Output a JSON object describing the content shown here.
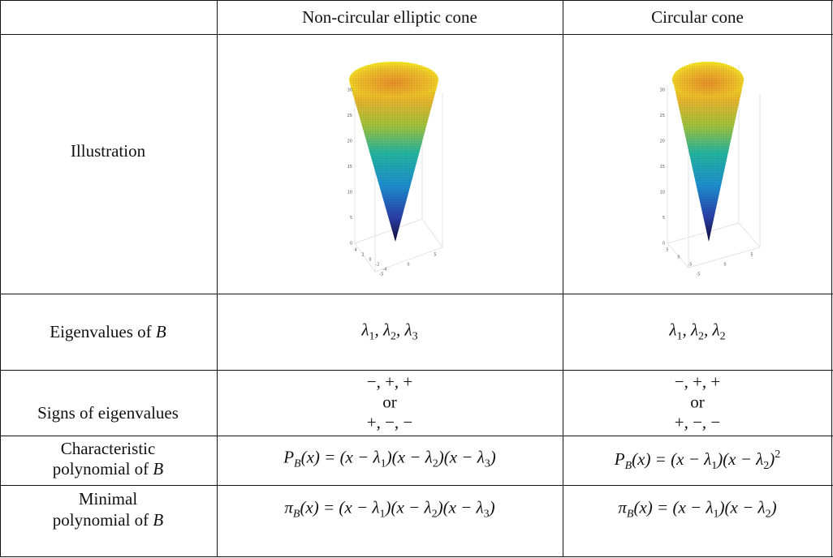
{
  "header": {
    "left": "Non-circular elliptic cone",
    "right": "Circular cone"
  },
  "illustration": {
    "label": "Illustration",
    "left": {
      "zticks": [
        "30",
        "25",
        "20",
        "15",
        "10",
        "5",
        "0"
      ],
      "xticks": [
        "4",
        "2",
        "0",
        "-2",
        "-4"
      ],
      "yticks": [
        "-5",
        "0",
        "5"
      ]
    },
    "right": {
      "zticks": [
        "30",
        "25",
        "20",
        "15",
        "10",
        "5",
        "0"
      ],
      "xticks": [
        "5",
        "0",
        "-5"
      ],
      "yticks": [
        "-5",
        "0",
        "5"
      ]
    }
  },
  "eigenvalues": {
    "label": [
      "Eigenvalues of ",
      "B"
    ],
    "left": [
      "λ",
      "1",
      ", λ",
      "2",
      ", λ",
      "3"
    ],
    "right": [
      "λ",
      "1",
      ", λ",
      "2",
      ", λ",
      "2"
    ]
  },
  "signs": {
    "label": "Signs of eigenvalues",
    "left": [
      "−, +, +",
      "or",
      "+, −, −"
    ],
    "right": [
      "−, +, +",
      "or",
      "+, −, −"
    ]
  },
  "characteristic": {
    "label": [
      "Characteristic",
      "polynomial of ",
      "B"
    ],
    "left": [
      "P",
      "B",
      "(x) = (x − λ",
      "1",
      ")(x − λ",
      "2",
      ")(x − λ",
      "3",
      ")"
    ],
    "right": [
      "P",
      "B",
      "(x) = (x − λ",
      "1",
      ")(x − λ",
      "2",
      ")",
      "2"
    ]
  },
  "minimal": {
    "label": [
      "Minimal",
      "polynomial of ",
      "B"
    ],
    "left": [
      "π",
      "B",
      "(x) = (x − λ",
      "1",
      ")(x − λ",
      "2",
      ")(x − λ",
      "3",
      ")"
    ],
    "right": [
      "π",
      "B",
      "(x) = (x − λ",
      "1",
      ")(x − λ",
      "2",
      ")"
    ]
  }
}
